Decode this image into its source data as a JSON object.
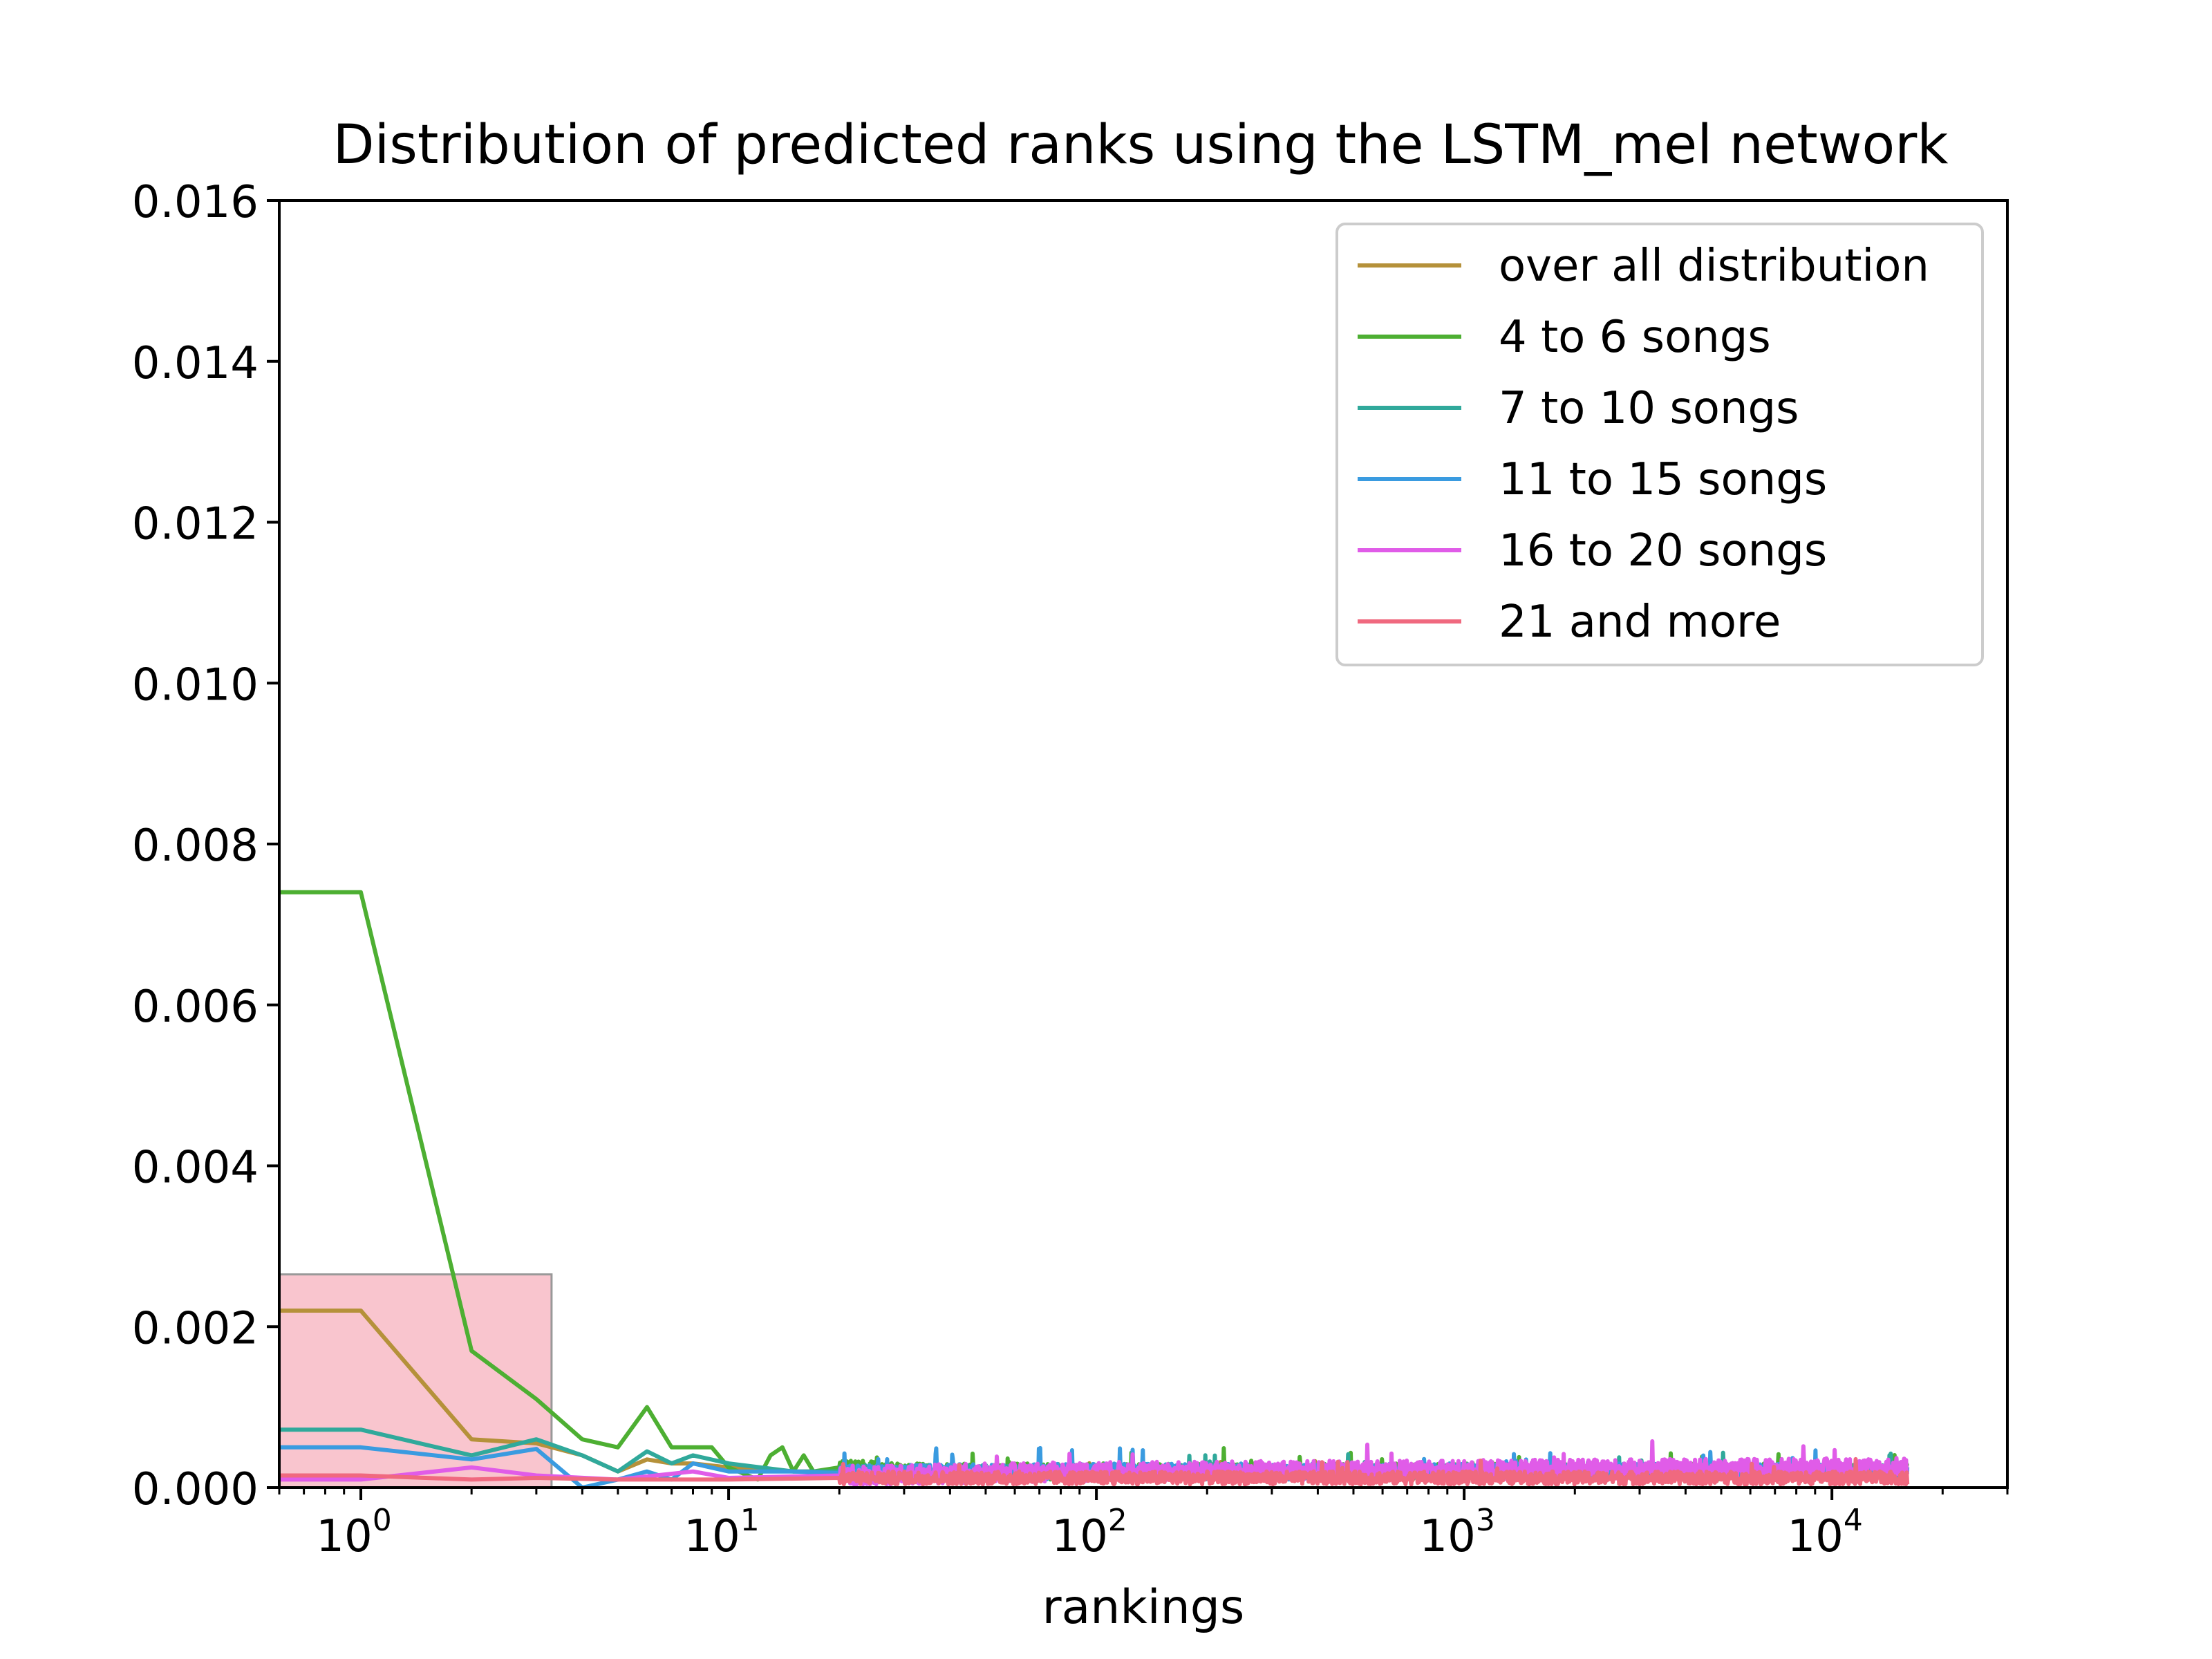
{
  "chart_data": {
    "type": "line",
    "title": "Distribution of predicted ranks using the LSTM_mel network",
    "xlabel": "rankings",
    "ylabel": "",
    "x_scale": "log",
    "xlim": [
      0.6,
      30000
    ],
    "ylim": [
      0,
      0.016
    ],
    "grid": false,
    "legend_position": "top-right",
    "y_ticks": [
      "0.000",
      "0.002",
      "0.004",
      "0.006",
      "0.008",
      "0.010",
      "0.012",
      "0.014",
      "0.016"
    ],
    "x_ticks": [
      {
        "base": "10",
        "exp": "0",
        "value": 1
      },
      {
        "base": "10",
        "exp": "1",
        "value": 10
      },
      {
        "base": "10",
        "exp": "2",
        "value": 100
      },
      {
        "base": "10",
        "exp": "3",
        "value": 1000
      },
      {
        "base": "10",
        "exp": "4",
        "value": 10000
      }
    ],
    "highlight_region": {
      "x": [
        0.6,
        3.3
      ],
      "y": [
        0,
        0.00265
      ],
      "color": "#f7b6c2"
    },
    "series": [
      {
        "name": "over all distribution",
        "color": "#b5913a",
        "x": [
          0.6,
          1,
          2,
          3,
          4,
          5,
          6,
          7,
          8,
          10,
          15,
          20,
          40,
          100,
          1000,
          16000
        ],
        "y": [
          0.0022,
          0.0022,
          0.0006,
          0.00055,
          0.0004,
          0.0002,
          0.00035,
          0.0003,
          0.0003,
          0.00025,
          0.0002,
          0.0002,
          0.00018,
          0.00018,
          0.00018,
          0.00018
        ],
        "noise": 5e-05
      },
      {
        "name": "4 to 6 songs",
        "color": "#4daf32",
        "x": [
          0.6,
          1,
          2,
          3,
          4,
          5,
          6,
          7,
          8,
          9,
          10,
          12,
          13,
          14,
          15,
          16,
          17,
          20,
          30,
          100,
          1000,
          16000
        ],
        "y": [
          0.0074,
          0.0074,
          0.0017,
          0.0011,
          0.0006,
          0.0005,
          0.001,
          0.0005,
          0.0005,
          0.0005,
          0.00025,
          0.0001,
          0.0004,
          0.0005,
          0.0002,
          0.0004,
          0.0002,
          0.00025,
          0.0002,
          0.0002,
          0.0002,
          0.0002
        ],
        "noise": 0.0001
      },
      {
        "name": "7 to 10 songs",
        "color": "#30a99b",
        "x": [
          0.6,
          1,
          2,
          3,
          4,
          5,
          6,
          7,
          8,
          10,
          15,
          20,
          100,
          1000,
          16000
        ],
        "y": [
          0.00072,
          0.00072,
          0.0004,
          0.0006,
          0.0004,
          0.0002,
          0.00045,
          0.0003,
          0.0004,
          0.0003,
          0.0002,
          0.0002,
          0.0002,
          0.0002,
          0.0002
        ],
        "noise": 8e-05
      },
      {
        "name": "11 to 15 songs",
        "color": "#3a9be0",
        "x": [
          0.6,
          1,
          2,
          3,
          4,
          5,
          6,
          7,
          8,
          10,
          15,
          20,
          100,
          1000,
          16000
        ],
        "y": [
          0.0005,
          0.0005,
          0.00035,
          0.00048,
          0.0,
          0.0001,
          0.0002,
          0.0001,
          0.0003,
          0.0002,
          0.0002,
          0.00018,
          0.0002,
          0.0002,
          0.0002
        ],
        "noise": 0.0001
      },
      {
        "name": "16 to 20 songs",
        "color": "#e05ce8",
        "x": [
          0.6,
          1,
          2,
          3,
          5,
          8,
          10,
          20,
          100,
          1000,
          16000
        ],
        "y": [
          0.0001,
          0.0001,
          0.00025,
          0.00015,
          0.0001,
          0.0002,
          0.00012,
          0.00015,
          0.0002,
          0.00022,
          0.00025
        ],
        "noise": 0.00012
      },
      {
        "name": "21 and more",
        "color": "#f0697f",
        "x": [
          0.6,
          1,
          2,
          3,
          5,
          10,
          20,
          100,
          1000,
          16000
        ],
        "y": [
          0.00015,
          0.00015,
          0.0001,
          0.00012,
          0.0001,
          0.0001,
          0.00012,
          0.00012,
          0.00012,
          0.00012
        ],
        "noise": 8e-05
      }
    ]
  }
}
